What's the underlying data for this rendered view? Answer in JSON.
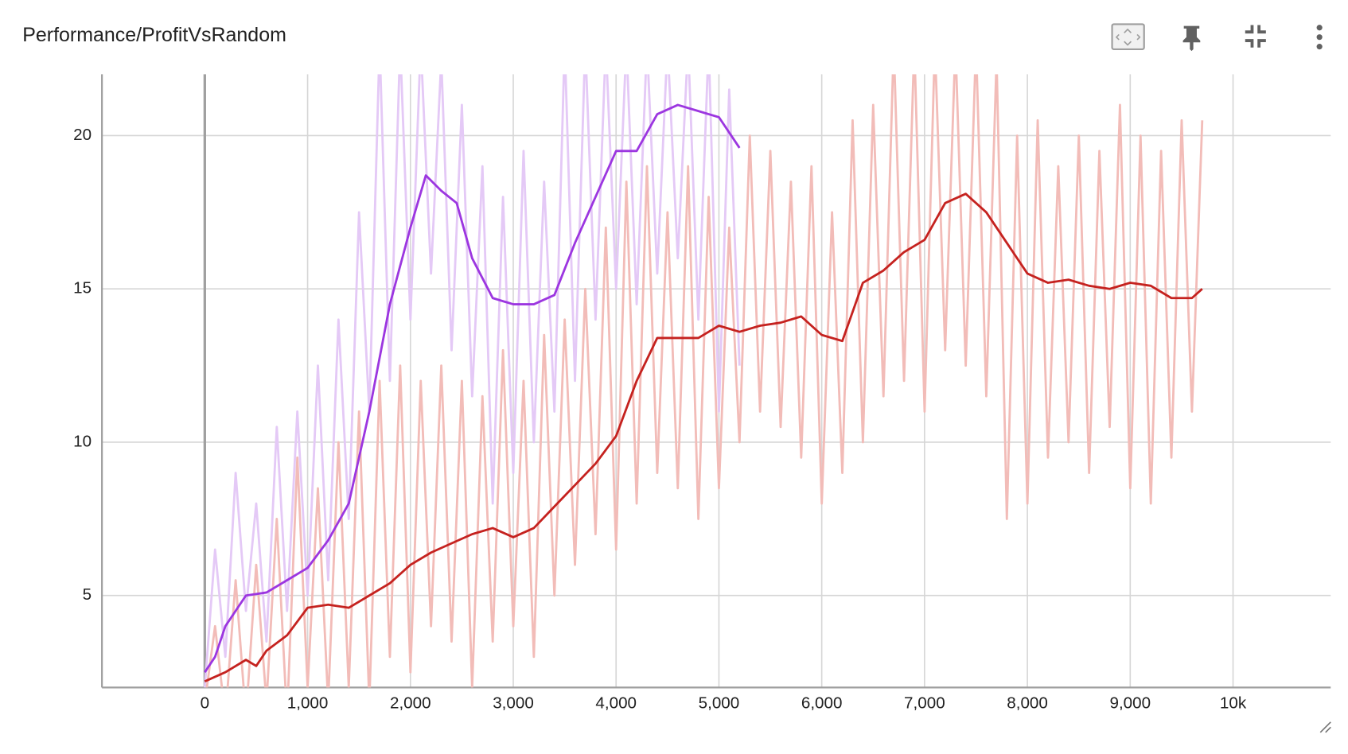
{
  "chart_data": {
    "type": "line",
    "title": "Performance/ProfitVsRandom",
    "xlim": [
      -1000,
      10950
    ],
    "ylim": [
      2,
      22
    ],
    "xticks": [
      0,
      {
        "value": 1000,
        "label": "1,000"
      },
      {
        "value": 2000,
        "label": "2,000"
      },
      {
        "value": 3000,
        "label": "3,000"
      },
      {
        "value": 4000,
        "label": "4,000"
      },
      {
        "value": 5000,
        "label": "5,000"
      },
      {
        "value": 6000,
        "label": "6,000"
      },
      {
        "value": 7000,
        "label": "7,000"
      },
      {
        "value": 8000,
        "label": "8,000"
      },
      {
        "value": 9000,
        "label": "9,000"
      },
      {
        "value": 10000,
        "label": "10k"
      }
    ],
    "yticks": [
      5,
      10,
      15,
      20
    ],
    "grid": true,
    "series": [
      {
        "color": "#e4c9f6",
        "x": [
          0,
          100,
          200,
          300,
          400,
          500,
          600,
          700,
          800,
          900,
          1000,
          1100,
          1200,
          1300,
          1400,
          1500,
          1600,
          1700,
          1800,
          1900,
          2000,
          2100,
          2200,
          2300,
          2400,
          2500,
          2600,
          2700,
          2800,
          2900,
          3000,
          3100,
          3200,
          3300,
          3400,
          3500,
          3600,
          3700,
          3800,
          3900,
          4000,
          4100,
          4200,
          4300,
          4400,
          4500,
          4600,
          4700,
          4800,
          4900,
          5000,
          5100,
          5200
        ],
        "values": [
          2.0,
          6.5,
          3.0,
          9.0,
          4.5,
          8.0,
          3.5,
          10.5,
          4.5,
          11.0,
          5.0,
          12.5,
          5.5,
          14.0,
          7.5,
          17.5,
          11.0,
          23,
          12.0,
          23,
          14.0,
          23,
          15.5,
          22.5,
          13.0,
          21.0,
          11.5,
          19.0,
          8.0,
          18.0,
          9.0,
          19.5,
          10.0,
          18.5,
          11.0,
          23,
          12.0,
          23,
          14.0,
          23,
          15.0,
          23,
          14.5,
          23,
          15.5,
          23,
          16.0,
          23,
          14.0,
          23,
          11.0,
          21.5,
          12.5
        ]
      },
      {
        "color": "#f2bcb8",
        "x": [
          0,
          100,
          200,
          300,
          400,
          500,
          600,
          700,
          800,
          900,
          1000,
          1100,
          1200,
          1300,
          1400,
          1500,
          1600,
          1700,
          1800,
          1900,
          2000,
          2100,
          2200,
          2300,
          2400,
          2500,
          2600,
          2700,
          2800,
          2900,
          3000,
          3100,
          3200,
          3300,
          3400,
          3500,
          3600,
          3700,
          3800,
          3900,
          4000,
          4100,
          4200,
          4300,
          4400,
          4500,
          4600,
          4700,
          4800,
          4900,
          5000,
          5100,
          5200,
          5300,
          5400,
          5500,
          5600,
          5700,
          5800,
          5900,
          6000,
          6100,
          6200,
          6300,
          6400,
          6500,
          6600,
          6700,
          6800,
          6900,
          7000,
          7100,
          7200,
          7300,
          7400,
          7500,
          7600,
          7700,
          7800,
          7900,
          8000,
          8100,
          8200,
          8300,
          8400,
          8500,
          8600,
          8700,
          8800,
          8900,
          9000,
          9100,
          9200,
          9300,
          9400,
          9500,
          9600,
          9700
        ],
        "values": [
          1.5,
          4.0,
          1.0,
          5.5,
          1.0,
          6.0,
          1.5,
          7.5,
          1.0,
          9.5,
          2.0,
          8.5,
          1.5,
          10.0,
          2.0,
          11.0,
          1.5,
          12.0,
          3.0,
          12.5,
          2.5,
          12.0,
          4.0,
          12.5,
          3.5,
          12.0,
          2.0,
          11.5,
          3.5,
          13.0,
          4.0,
          12.0,
          3.0,
          13.5,
          5.0,
          14.0,
          6.0,
          15.0,
          7.0,
          17.0,
          6.5,
          18.5,
          8.0,
          19.0,
          9.0,
          17.5,
          8.5,
          19.0,
          7.5,
          18.0,
          8.5,
          17.0,
          10.0,
          20.0,
          11.0,
          19.5,
          10.5,
          18.5,
          9.5,
          19.0,
          8.0,
          17.5,
          9.0,
          20.5,
          10.0,
          21.0,
          11.5,
          23,
          12.0,
          23,
          11.0,
          23,
          13.0,
          23,
          12.5,
          23,
          11.5,
          22.5,
          7.5,
          20.0,
          8.0,
          20.5,
          9.5,
          19.0,
          10.0,
          20.0,
          9.0,
          19.5,
          10.5,
          21.0,
          8.5,
          20.0,
          8.0,
          19.5,
          9.5,
          20.5,
          11.0,
          20.5
        ]
      },
      {
        "color": "#9c36e0",
        "x": [
          0,
          100,
          200,
          400,
          600,
          800,
          1000,
          1200,
          1400,
          1600,
          1800,
          2000,
          2150,
          2300,
          2450,
          2600,
          2800,
          3000,
          3200,
          3400,
          3600,
          3800,
          4000,
          4200,
          4400,
          4600,
          4800,
          5000,
          5200
        ],
        "values": [
          2.5,
          3.0,
          4.0,
          5.0,
          5.1,
          5.5,
          5.9,
          6.8,
          8.0,
          11.0,
          14.5,
          17.0,
          18.7,
          18.2,
          17.8,
          16.0,
          14.7,
          14.5,
          14.5,
          14.8,
          16.5,
          18.0,
          19.5,
          19.5,
          20.7,
          21.0,
          20.8,
          20.6,
          19.6
        ]
      },
      {
        "color": "#c5221f",
        "x": [
          0,
          200,
          400,
          500,
          600,
          800,
          1000,
          1200,
          1400,
          1600,
          1800,
          2000,
          2200,
          2400,
          2600,
          2800,
          3000,
          3200,
          3400,
          3600,
          3800,
          4000,
          4200,
          4400,
          4600,
          4800,
          5000,
          5200,
          5400,
          5600,
          5800,
          6000,
          6200,
          6400,
          6600,
          6800,
          7000,
          7200,
          7400,
          7600,
          7800,
          8000,
          8200,
          8400,
          8600,
          8800,
          9000,
          9200,
          9400,
          9600,
          9700
        ],
        "values": [
          2.2,
          2.5,
          2.9,
          2.7,
          3.2,
          3.7,
          4.6,
          4.7,
          4.6,
          5.0,
          5.4,
          6.0,
          6.4,
          6.7,
          7.0,
          7.2,
          6.9,
          7.2,
          7.9,
          8.6,
          9.3,
          10.2,
          12.0,
          13.4,
          13.4,
          13.4,
          13.8,
          13.6,
          13.8,
          13.9,
          14.1,
          13.5,
          13.3,
          15.2,
          15.6,
          16.2,
          16.6,
          17.8,
          18.1,
          17.5,
          16.5,
          15.5,
          15.2,
          15.3,
          15.1,
          15.0,
          15.2,
          15.1,
          14.7,
          14.7,
          15.0
        ]
      }
    ]
  }
}
